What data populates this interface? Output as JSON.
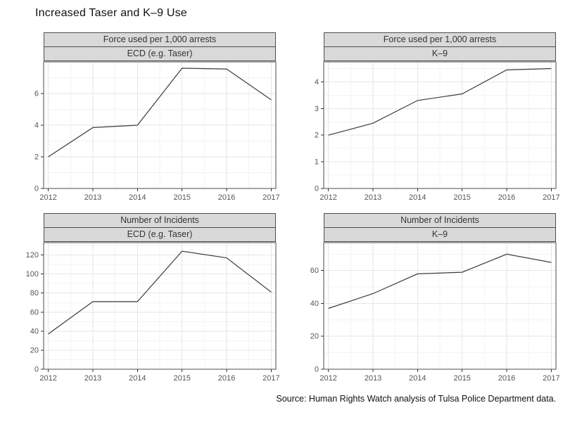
{
  "page": {
    "title": "Increased Taser and K–9 Use",
    "source": "Source: Human Rights Watch analysis of Tulsa Police Department data."
  },
  "colors": {
    "panel_bg": "#ffffff",
    "strip_bg": "#d9d9d9",
    "panel_border": "#4d4d4d",
    "line": "#3c3c3c",
    "grid_major": "#e6e6e6",
    "grid_minor": "#f3f3f3",
    "tick": "#333333",
    "tick_label": "#555555"
  },
  "chart_data": [
    {
      "type": "line",
      "facet_row": "Force used per 1,000 arrests",
      "facet_col": "ECD (e.g. Taser)",
      "x": [
        2012,
        2013,
        2014,
        2015,
        2016,
        2017
      ],
      "values": [
        2.0,
        3.85,
        4.0,
        7.6,
        7.55,
        5.6
      ],
      "yticks": [
        0,
        2,
        4,
        6
      ],
      "ylim": [
        0,
        8.0
      ],
      "xlabel": "",
      "ylabel": "",
      "grid": true,
      "legend": "none"
    },
    {
      "type": "line",
      "facet_row": "Force used per 1,000 arrests",
      "facet_col": "K–9",
      "x": [
        2012,
        2013,
        2014,
        2015,
        2016,
        2017
      ],
      "values": [
        2.0,
        2.45,
        3.3,
        3.55,
        4.45,
        4.5
      ],
      "yticks": [
        0,
        1,
        2,
        3,
        4
      ],
      "ylim": [
        0,
        4.75
      ],
      "xlabel": "",
      "ylabel": "",
      "grid": true,
      "legend": "none"
    },
    {
      "type": "line",
      "facet_row": "Number of Incidents",
      "facet_col": "ECD (e.g. Taser)",
      "x": [
        2012,
        2013,
        2014,
        2015,
        2016,
        2017
      ],
      "values": [
        37,
        71,
        71,
        124,
        117,
        81
      ],
      "yticks": [
        0,
        20,
        40,
        60,
        80,
        100,
        120
      ],
      "ylim": [
        0,
        133
      ],
      "xlabel": "",
      "ylabel": "",
      "grid": true,
      "legend": "none"
    },
    {
      "type": "line",
      "facet_row": "Number of Incidents",
      "facet_col": "K–9",
      "x": [
        2012,
        2013,
        2014,
        2015,
        2016,
        2017
      ],
      "values": [
        37,
        46,
        58,
        59,
        70,
        65
      ],
      "yticks": [
        0,
        20,
        40,
        60
      ],
      "ylim": [
        0,
        77
      ],
      "xlabel": "",
      "ylabel": "",
      "grid": true,
      "legend": "none"
    }
  ]
}
